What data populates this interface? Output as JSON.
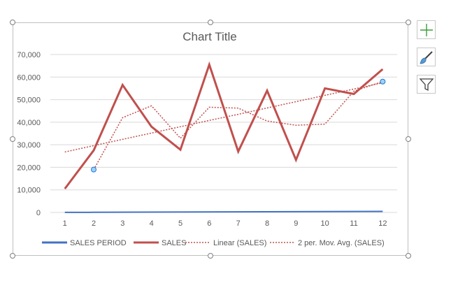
{
  "chart_data": {
    "type": "line",
    "title": "Chart Title",
    "categories": [
      "1",
      "2",
      "3",
      "4",
      "5",
      "6",
      "7",
      "8",
      "9",
      "10",
      "11",
      "12"
    ],
    "y_ticks": [
      "0",
      "10,000",
      "20,000",
      "30,000",
      "40,000",
      "50,000",
      "60,000",
      "70,000"
    ],
    "ylim": [
      0,
      70000
    ],
    "grid": true,
    "legend_position": "bottom",
    "series": [
      {
        "name": "SALES PERIOD",
        "kind": "line",
        "color": "#4472c4",
        "values": [
          1,
          2,
          3,
          4,
          5,
          6,
          7,
          8,
          9,
          10,
          11,
          12
        ]
      },
      {
        "name": "SALES",
        "kind": "line",
        "color": "#c0504d",
        "values": [
          10500,
          27500,
          56500,
          38000,
          27800,
          65500,
          27000,
          54000,
          23300,
          55000,
          52500,
          63500
        ]
      },
      {
        "name": "Linear (SALES)",
        "kind": "trend-linear",
        "color": "#c0504d",
        "values": [
          26800,
          29600,
          32400,
          35200,
          38000,
          40800,
          43500,
          46300,
          49100,
          51900,
          54700,
          57500
        ]
      },
      {
        "name": "2 per. Mov. Avg. (SALES)",
        "kind": "trend-moving-average",
        "color": "#c0504d",
        "values": [
          null,
          19000,
          42000,
          47250,
          32900,
          46650,
          46250,
          40500,
          38650,
          39150,
          53750,
          58000
        ]
      }
    ]
  },
  "toolbar": {
    "chart_elements": "plus-icon",
    "chart_styles": "paintbrush-icon",
    "chart_filters": "funnel-icon"
  }
}
